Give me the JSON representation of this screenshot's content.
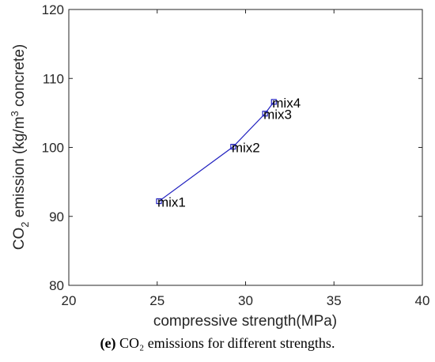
{
  "chart_data": {
    "type": "line",
    "xlabel": "compressive strength(MPa)",
    "ylabel": {
      "main": "CO",
      "sub": "2",
      "mid": " emission (kg/m",
      "sup": "3",
      "end": " concrete)"
    },
    "xlim": [
      20,
      40
    ],
    "ylim": [
      80,
      120
    ],
    "xticks": [
      20,
      25,
      30,
      35,
      40
    ],
    "yticks": [
      80,
      90,
      100,
      110,
      120
    ],
    "grid": false,
    "series": [
      {
        "color": "#1f1fbf",
        "marker": "square",
        "points": [
          {
            "x": 25.1,
            "y": 92.2,
            "label": "mix1"
          },
          {
            "x": 29.3,
            "y": 100.1,
            "label": "mix2"
          },
          {
            "x": 31.1,
            "y": 104.9,
            "label": "mix3"
          },
          {
            "x": 31.6,
            "y": 106.6,
            "label": "mix4"
          }
        ]
      }
    ]
  },
  "caption": {
    "prefix": "(e)",
    "text": " CO₂ emissions for different strengths."
  }
}
